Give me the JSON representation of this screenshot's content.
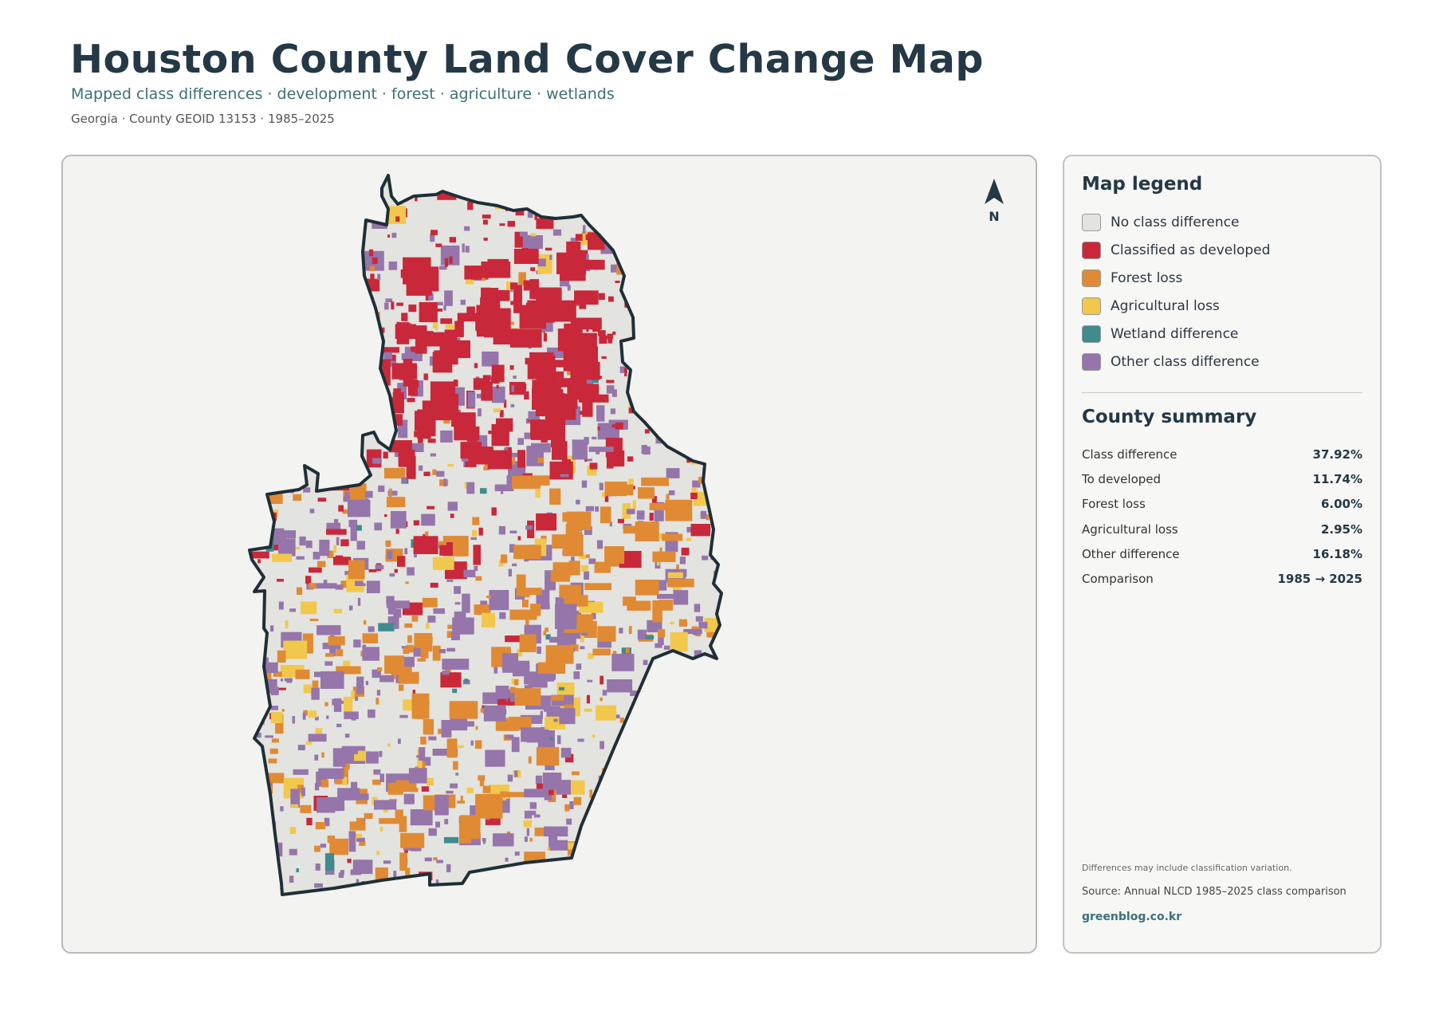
{
  "header": {
    "title": "Houston County Land Cover Change Map",
    "subtitle": "Mapped class differences · development · forest · agriculture · wetlands",
    "meta": "Georgia · County GEOID 13153 · 1985–2025"
  },
  "map": {
    "north_label": "N",
    "north_icon": "north-arrow-icon"
  },
  "legend": {
    "heading": "Map legend",
    "items": [
      {
        "label": "No class difference",
        "color": "#e3e3e0"
      },
      {
        "label": "Classified as developed",
        "color": "#c8283a"
      },
      {
        "label": "Forest loss",
        "color": "#e08a34"
      },
      {
        "label": "Agricultural loss",
        "color": "#f1c84b"
      },
      {
        "label": "Wetland difference",
        "color": "#3f8b8d"
      },
      {
        "label": "Other class difference",
        "color": "#9575aa"
      }
    ]
  },
  "summary": {
    "heading": "County summary",
    "rows": [
      {
        "label": "Class difference",
        "value": "37.92%"
      },
      {
        "label": "To developed",
        "value": "11.74%"
      },
      {
        "label": "Forest loss",
        "value": "6.00%"
      },
      {
        "label": "Agricultural loss",
        "value": "2.95%"
      },
      {
        "label": "Other difference",
        "value": "16.18%"
      },
      {
        "label": "Comparison",
        "value": "1985 → 2025"
      }
    ]
  },
  "footer": {
    "note": "Differences may include classification variation.",
    "source": "Source: Annual NLCD 1985–2025 class comparison",
    "brand": "greenblog.co.kr"
  }
}
